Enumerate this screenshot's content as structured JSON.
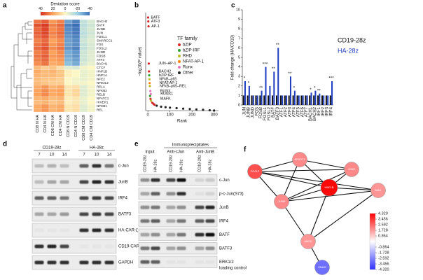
{
  "panel_labels": [
    "a",
    "b",
    "c",
    "d",
    "e",
    "f"
  ],
  "chart_data": [
    {
      "type": "heatmap",
      "colorbar_title": "Deviation score",
      "clim": [
        -40,
        40
      ],
      "cticks": [
        40,
        20,
        0,
        -20,
        -40
      ],
      "rows": [
        "BACH2",
        "BATF",
        "JUNB",
        "JUN",
        "FOSL1",
        "SMARCC1",
        "FOS",
        "FOSL2",
        "JUND",
        "FOSB",
        "ATF3",
        "BACH1",
        "CTCF",
        "HNF1B",
        "HNF1A",
        "NFE2",
        "NFE2L2",
        "RELA",
        "NFKB2",
        "RELB",
        "NFATC1",
        "HIVEP1",
        "NFKB1",
        "REL"
      ],
      "columns": [
        "CD8 N HA",
        "CD4 N HA",
        "CD8 CM HA",
        "CD4 CM HA",
        "CD8 N CD19",
        "CD4 N CD19",
        "CD8 CM CD19",
        "CD4 CM CD19"
      ],
      "values": [
        [
          28,
          32,
          22,
          26,
          -30,
          -36,
          -12,
          -8
        ],
        [
          34,
          38,
          26,
          30,
          -36,
          -40,
          -14,
          -10
        ],
        [
          30,
          36,
          24,
          28,
          -34,
          -38,
          -12,
          -8
        ],
        [
          32,
          36,
          26,
          30,
          -34,
          -38,
          -14,
          -10
        ],
        [
          30,
          34,
          24,
          28,
          -32,
          -36,
          -12,
          -8
        ],
        [
          26,
          30,
          20,
          24,
          -30,
          -34,
          -10,
          -6
        ],
        [
          28,
          32,
          22,
          26,
          -30,
          -34,
          -12,
          -8
        ],
        [
          30,
          34,
          24,
          28,
          -32,
          -36,
          -12,
          -8
        ],
        [
          26,
          30,
          20,
          24,
          -28,
          -32,
          -10,
          -6
        ],
        [
          28,
          32,
          22,
          24,
          -28,
          -32,
          -10,
          -6
        ],
        [
          26,
          30,
          20,
          22,
          -26,
          -30,
          -10,
          -6
        ],
        [
          24,
          28,
          18,
          20,
          -24,
          -28,
          -8,
          -4
        ],
        [
          14,
          10,
          12,
          6,
          -6,
          -8,
          -2,
          0
        ],
        [
          18,
          14,
          16,
          12,
          2,
          0,
          -4,
          -2
        ],
        [
          16,
          14,
          14,
          12,
          2,
          0,
          -4,
          -2
        ],
        [
          14,
          12,
          12,
          10,
          0,
          -2,
          -4,
          -2
        ],
        [
          14,
          12,
          10,
          10,
          0,
          -2,
          -2,
          0
        ],
        [
          18,
          22,
          16,
          18,
          4,
          6,
          -6,
          -2
        ],
        [
          20,
          24,
          18,
          20,
          4,
          8,
          -6,
          -2
        ],
        [
          20,
          24,
          18,
          20,
          4,
          8,
          -6,
          -2
        ],
        [
          16,
          18,
          14,
          16,
          2,
          4,
          -4,
          0
        ],
        [
          14,
          16,
          12,
          14,
          2,
          4,
          -4,
          0
        ],
        [
          18,
          22,
          16,
          18,
          4,
          6,
          -6,
          -2
        ],
        [
          18,
          22,
          16,
          18,
          4,
          6,
          -6,
          -2
        ]
      ]
    },
    {
      "type": "scatter",
      "xlabel": "Rank",
      "ylabel": "−log10(P value)",
      "legend_title": "TF family",
      "xlim": [
        -10,
        320
      ],
      "ylim": [
        0,
        100
      ],
      "xticks": [
        0,
        100,
        200,
        300
      ],
      "series": [
        {
          "name": "bZIP",
          "color": "#d62728",
          "x": [
            1,
            2,
            3,
            4,
            5,
            12,
            20,
            25,
            30
          ],
          "values": [
            95,
            91,
            86,
            48,
            40,
            12,
            8,
            7,
            6
          ],
          "labels": [
            "BATF",
            "ATF3",
            "AP-1",
            "JUN–AP-1",
            "BACH2",
            "MAFK",
            null,
            null,
            null
          ]
        },
        {
          "name": "bZIP-IRF",
          "color": "#2ca02c",
          "x": [
            6,
            10
          ],
          "values": [
            36,
            15
          ],
          "labels": [
            "bZIP:IRF",
            null
          ]
        },
        {
          "name": "RHD",
          "color": "#bcbd22",
          "x": [
            7,
            9,
            14
          ],
          "values": [
            32,
            25,
            10
          ],
          "labels": [
            "NFkB–p65",
            "NFkB–p65–REL",
            null
          ]
        },
        {
          "name": "NFAT-AP-1",
          "color": "#ff7f0e",
          "x": [
            8
          ],
          "values": [
            28
          ],
          "labels": [
            "NFAT:AP-1"
          ]
        },
        {
          "name": "Runx",
          "color": "#e377c2",
          "x": [
            11,
            13
          ],
          "values": [
            20,
            17
          ],
          "labels": [
            "RUNX",
            "RUNX1"
          ]
        },
        {
          "name": "Other",
          "color": "#222222",
          "x": [
            40,
            60,
            80,
            100,
            130,
            160,
            190,
            220,
            250,
            280,
            300
          ],
          "values": [
            5,
            4,
            3.5,
            3,
            2.5,
            2,
            1.6,
            1.2,
            0.8,
            0.4,
            0.1
          ]
        }
      ]
    },
    {
      "type": "bar",
      "ylabel": "Fold change (HA/CD19)",
      "ylim": [
        0,
        10
      ],
      "yticks": [
        0,
        1,
        2,
        3,
        4,
        5,
        6,
        7,
        8,
        9,
        10
      ],
      "categories": [
        "JUN",
        "JUNB",
        "JUND",
        "FOS",
        "FOSB",
        "FOSL1",
        "FOSL2",
        "BATF",
        "BATF3",
        "ATF1",
        "ATF2",
        "ATF3",
        "ATF4",
        "ATF5",
        "ATF6",
        "ATF7",
        "BACH1",
        "BACH2",
        "IRF1",
        "IRF2",
        "IRF3",
        "IRF4"
      ],
      "series": [
        {
          "name": "CD19-28z",
          "color": "#111111",
          "values": [
            1,
            1,
            1,
            1,
            1,
            1,
            1,
            1,
            1,
            1,
            1,
            1,
            1,
            1,
            1,
            1,
            1,
            1,
            1,
            1,
            1,
            1
          ]
        },
        {
          "name": "HA-28z",
          "color": "#1f3fbf",
          "values": [
            2.5,
            2,
            1,
            1,
            1.5,
            4,
            2,
            3.5,
            6,
            1,
            1,
            3,
            1.5,
            1,
            1,
            1,
            1.3,
            1.5,
            1.2,
            1,
            1,
            2.5
          ]
        }
      ],
      "significance": [
        "*",
        "*",
        null,
        null,
        "**",
        "***",
        null,
        "**",
        "**",
        null,
        null,
        "**",
        "*",
        null,
        null,
        null,
        "*",
        "*",
        "**",
        null,
        null,
        "***"
      ]
    }
  ],
  "blot_d": {
    "groups": [
      "CD19-28z",
      "HA-28z"
    ],
    "lanes": [
      "7",
      "10",
      "14",
      "7",
      "10",
      "14"
    ],
    "rows": [
      "c-Jun",
      "JunB",
      "IRF4",
      "BATF3",
      "HA-CAR-ζ",
      "CD19-CAR-ζ",
      "GAPDH"
    ]
  },
  "blot_e": {
    "header": "Immunoprecipitates",
    "groups": [
      "Input",
      "Anti-cJun",
      "Anti-JunB"
    ],
    "lanes": [
      "CD19-28z",
      "HA-28z",
      "CD19-28z",
      "HA-28z",
      "CD19-28z",
      "HA-28z"
    ],
    "rows": [
      "c-Jun",
      "p-c-Jun(S73)",
      "JunB",
      "IRF4",
      "BATF",
      "BATF3",
      "ERK1/2"
    ],
    "loading_label": "loading control"
  },
  "network": {
    "nodes": [
      {
        "label": "FOSL2",
        "value": 3.0
      },
      {
        "label": "NFATC1",
        "value": 2.0
      },
      {
        "label": "JUND",
        "value": 2.0
      },
      {
        "label": "HNF1B",
        "value": 4.2
      },
      {
        "label": "JUNB",
        "value": 2.0
      },
      {
        "label": "MAX",
        "value": 1.8
      },
      {
        "label": "MAFK",
        "value": 1.8
      },
      {
        "label": "SNAI2",
        "value": -3.0
      }
    ],
    "clim": [
      -4.32,
      4.32
    ],
    "colorbar_ticks": [
      {
        "value": 4.32,
        "label": "4.320"
      },
      {
        "value": 3.456,
        "label": "3.456"
      },
      {
        "value": 2.592,
        "label": "2.592"
      },
      {
        "value": 1.728,
        "label": "1.728"
      },
      {
        "value": 0.864,
        "label": "0.864"
      },
      {
        "value": -0.864,
        "label": "-0.864"
      },
      {
        "value": -1.728,
        "label": "-1.728"
      },
      {
        "value": -2.592,
        "label": "-2.592"
      },
      {
        "value": -3.456,
        "label": "-3.456"
      },
      {
        "value": -4.32,
        "label": "-4.320"
      }
    ]
  }
}
